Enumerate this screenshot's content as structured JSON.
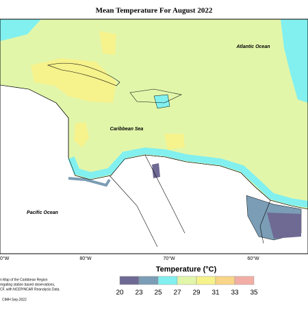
{
  "header": {
    "title": "Mean Temperature For August 2022"
  },
  "map": {
    "labels": [
      "Atlantic Ocean",
      "Caribbean Sea",
      "Pacific Ocean"
    ],
    "longitudes": [
      "0°W",
      "80°W",
      "70°W",
      "60°W"
    ]
  },
  "legend": {
    "title": "Temperature (°C)",
    "ticks": [
      20,
      23,
      25,
      27,
      29,
      31,
      33,
      35
    ],
    "colors": [
      "#6e6a94",
      "#7b9db5",
      "#82f0ef",
      "#e2f6aa",
      "#f6f28c",
      "#f8d588",
      "#f2aea6"
    ]
  },
  "notes": [
    "n Map of the Caribbean Region",
    "regating station based observations,",
    "CF, with NCEP/NCAR Reanalysis Data.",
    "CIMH Sep-2022"
  ]
}
